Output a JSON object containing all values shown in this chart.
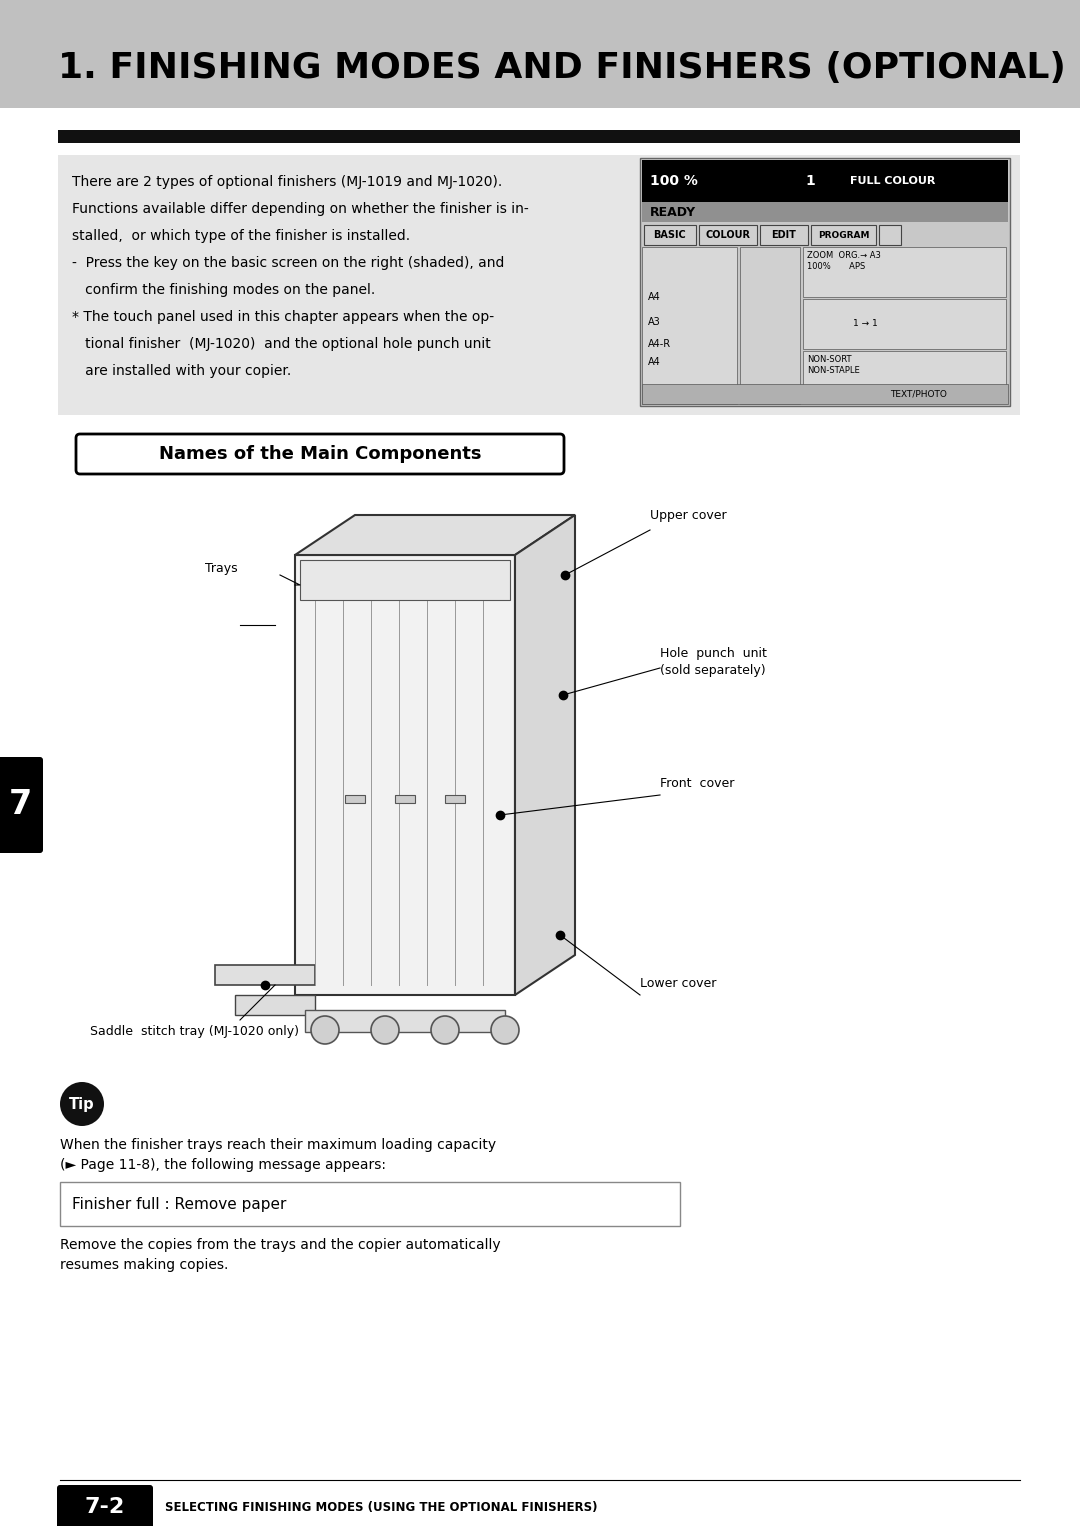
{
  "title": "1. FINISHING MODES AND FINISHERS (OPTIONAL)",
  "title_bg": "#c0c0c0",
  "page_bg": "#ffffff",
  "black_bar_color": "#111111",
  "info_box_bg": "#e6e6e6",
  "info_text_lines": [
    "There are 2 types of optional finishers (MJ-1019 and MJ-1020).",
    "Functions available differ depending on whether the finisher is in-",
    "stalled,  or which type of the finisher is installed.",
    "-  Press the key on the basic screen on the right (shaded), and",
    "   confirm the finishing modes on the panel.",
    "* The touch panel used in this chapter appears when the op-",
    "   tional finisher  (MJ-1020)  and the optional hole punch unit",
    "   are installed with your copier."
  ],
  "section_title": "Names of the Main Components",
  "label_trays": "Trays",
  "label_upper": "Upper cover",
  "label_hole1": "Hole  punch  unit",
  "label_hole2": "(sold separately)",
  "label_front": "Front  cover",
  "label_saddle": "Saddle  stitch tray (MJ-1020 only)",
  "label_lower": "Lower cover",
  "tip_text": "Tip",
  "tip_line1": "When the finisher trays reach their maximum loading capacity",
  "tip_line2": "(► Page 11-8), the following message appears:",
  "tip_box_text": "Finisher full : Remove paper",
  "tip_footer1": "Remove the copies from the trays and the copier automatically",
  "tip_footer2": "resumes making copies.",
  "footer_num": "7-2",
  "footer_body": "SELECTING FINISHING MODES (USING THE OPTIONAL FINISHERS)",
  "tab_text": "7"
}
